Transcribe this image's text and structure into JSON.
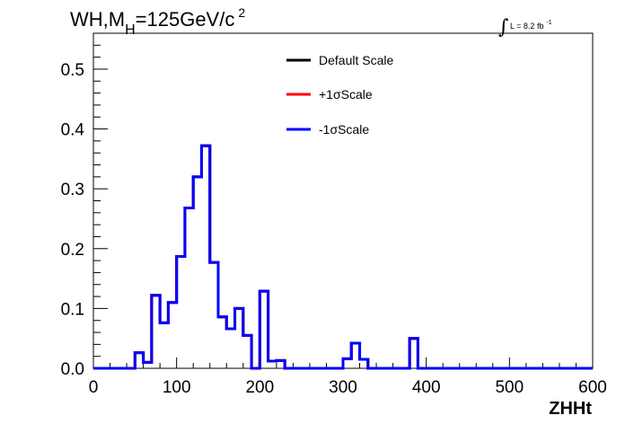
{
  "chart_data": {
    "type": "line",
    "title_parts": {
      "main": "WH,M",
      "sub": "H",
      "rest": "=125GeV/c",
      "sup": "2"
    },
    "luminosity": {
      "symbol": "∫",
      "text": "L = 8.2 fb",
      "sup": "-1"
    },
    "xlabel": "ZHHt",
    "ylabel": "",
    "xlim": [
      0,
      600
    ],
    "ylim": [
      0,
      0.56
    ],
    "x_ticks": [
      "0",
      "100",
      "200",
      "300",
      "400",
      "500",
      "600"
    ],
    "y_ticks": [
      "0.0",
      "0.1",
      "0.2",
      "0.3",
      "0.4",
      "0.5"
    ],
    "grid": false,
    "legend_position": "top-center",
    "bin_edges": [
      0,
      10,
      20,
      30,
      40,
      50,
      60,
      70,
      80,
      90,
      100,
      110,
      120,
      130,
      140,
      150,
      160,
      170,
      180,
      190,
      200,
      210,
      220,
      230,
      240,
      250,
      260,
      270,
      280,
      290,
      300,
      310,
      320,
      330,
      340,
      350,
      360,
      370,
      380,
      390,
      400,
      410,
      420,
      430,
      440,
      450,
      460,
      470,
      480,
      490,
      500,
      510,
      520,
      530,
      540,
      550,
      560,
      570,
      580,
      590,
      600
    ],
    "series": [
      {
        "name": "Default Scale",
        "color": "#000000",
        "values": [
          0,
          0,
          0,
          0,
          0,
          0.026,
          0.01,
          0.122,
          0.076,
          0.11,
          0.187,
          0.268,
          0.32,
          0.372,
          0.177,
          0.086,
          0.066,
          0.1,
          0.055,
          0,
          0.129,
          0.012,
          0.013,
          0,
          0,
          0,
          0,
          0,
          0,
          0,
          0.016,
          0.042,
          0.015,
          0,
          0,
          0,
          0,
          0,
          0.05,
          0,
          0,
          0,
          0,
          0,
          0,
          0,
          0,
          0,
          0,
          0,
          0,
          0,
          0,
          0,
          0,
          0,
          0,
          0,
          0,
          0
        ]
      },
      {
        "name": "+1σScale",
        "color": "#ff0000",
        "values": [
          0,
          0,
          0,
          0,
          0,
          0.026,
          0.01,
          0.122,
          0.076,
          0.11,
          0.187,
          0.268,
          0.32,
          0.372,
          0.177,
          0.086,
          0.066,
          0.1,
          0.055,
          0,
          0.129,
          0.012,
          0.013,
          0,
          0,
          0,
          0,
          0,
          0,
          0,
          0.016,
          0.042,
          0.015,
          0,
          0,
          0,
          0,
          0,
          0.05,
          0,
          0,
          0,
          0,
          0,
          0,
          0,
          0,
          0,
          0,
          0,
          0,
          0,
          0,
          0,
          0,
          0,
          0,
          0,
          0,
          0
        ]
      },
      {
        "name": "-1σScale",
        "color": "#0000ff",
        "values": [
          0,
          0,
          0,
          0,
          0,
          0.026,
          0.01,
          0.122,
          0.076,
          0.11,
          0.187,
          0.268,
          0.32,
          0.372,
          0.177,
          0.086,
          0.066,
          0.1,
          0.055,
          0,
          0.129,
          0.012,
          0.013,
          0,
          0,
          0,
          0,
          0,
          0,
          0,
          0.016,
          0.042,
          0.015,
          0,
          0,
          0,
          0,
          0,
          0.05,
          0,
          0,
          0,
          0,
          0,
          0,
          0,
          0,
          0,
          0,
          0,
          0,
          0,
          0,
          0,
          0,
          0,
          0,
          0,
          0,
          0
        ]
      }
    ]
  }
}
